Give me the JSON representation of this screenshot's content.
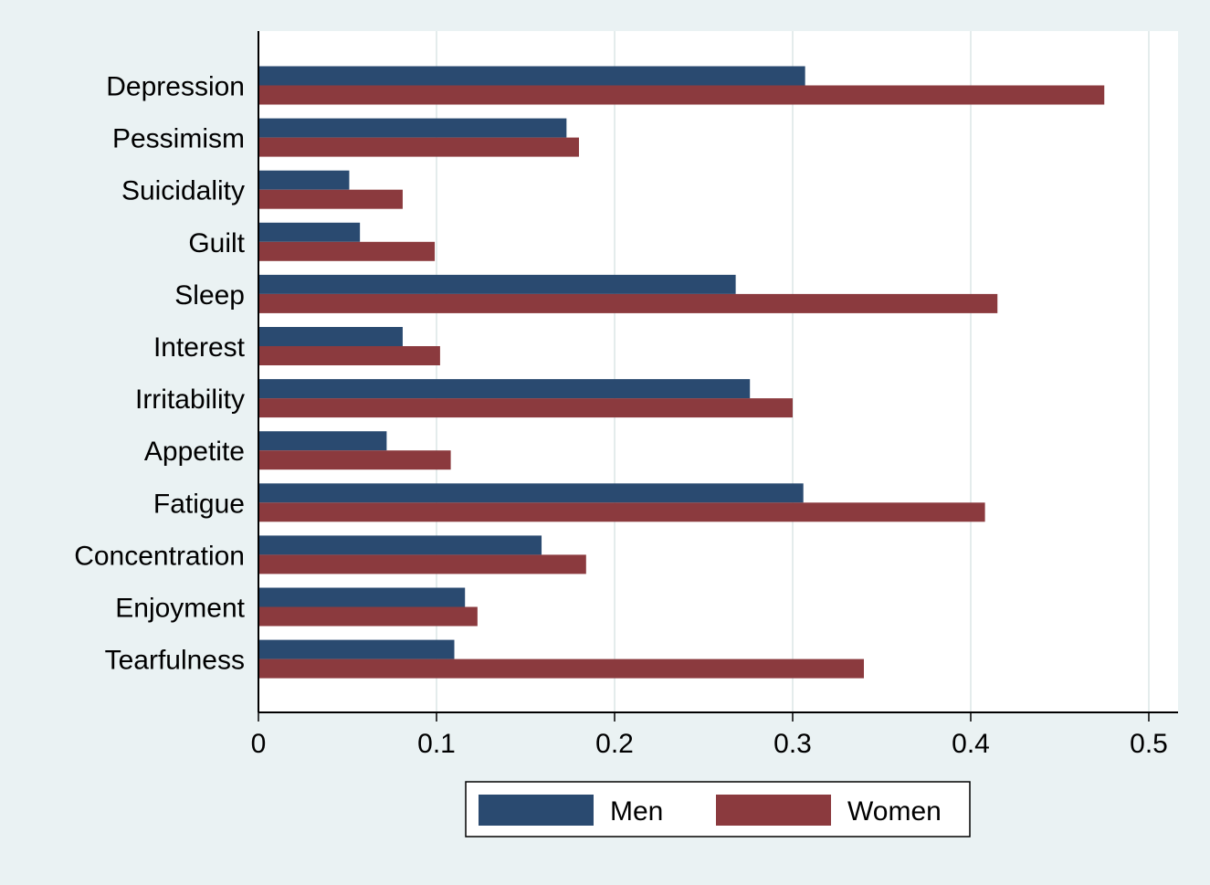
{
  "chart_data": {
    "type": "bar",
    "orientation": "horizontal",
    "title": "",
    "xlabel": "",
    "ylabel": "",
    "categories": [
      "Depression",
      "Pessimism",
      "Suicidality",
      "Guilt",
      "Sleep",
      "Interest",
      "Irritability",
      "Appetite",
      "Fatigue",
      "Concentration",
      "Enjoyment",
      "Tearfulness"
    ],
    "series": [
      {
        "name": "Men",
        "color": "#2a4a70",
        "values": [
          0.307,
          0.173,
          0.051,
          0.057,
          0.268,
          0.081,
          0.276,
          0.072,
          0.306,
          0.159,
          0.116,
          0.11
        ]
      },
      {
        "name": "Women",
        "color": "#8b3a3e",
        "values": [
          0.475,
          0.18,
          0.081,
          0.099,
          0.415,
          0.102,
          0.3,
          0.108,
          0.408,
          0.184,
          0.123,
          0.34
        ]
      }
    ],
    "xlim": [
      0,
      0.5
    ],
    "xticks": [
      0,
      0.1,
      0.2,
      0.3,
      0.4,
      0.5
    ],
    "xtick_labels": [
      "0",
      "0.1",
      "0.2",
      "0.3",
      "0.4",
      "0.5"
    ],
    "grid": true,
    "legend_position": "bottom",
    "colors": {
      "background": "#eaf2f3",
      "plot_area": "#ffffff",
      "grid": "#e4ecec",
      "axis": "#000000"
    }
  }
}
